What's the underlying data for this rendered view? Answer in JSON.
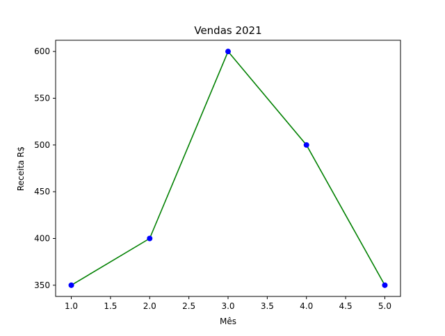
{
  "chart_data": {
    "type": "line",
    "title": "Vendas 2021",
    "xlabel": "Mês",
    "ylabel": "Receita R$",
    "x": [
      1,
      2,
      3,
      4,
      5
    ],
    "series": [
      {
        "values": [
          350,
          400,
          600,
          500,
          350
        ],
        "line_color": "#008000",
        "marker_color": "#0000ff",
        "marker": "circle"
      }
    ],
    "xlim": [
      0.8,
      5.2
    ],
    "ylim": [
      338,
      612
    ],
    "xticks": [
      1.0,
      1.5,
      2.0,
      2.5,
      3.0,
      3.5,
      4.0,
      4.5,
      5.0
    ],
    "xtick_labels": [
      "1.0",
      "1.5",
      "2.0",
      "2.5",
      "3.0",
      "3.5",
      "4.0",
      "4.5",
      "5.0"
    ],
    "yticks": [
      350,
      400,
      450,
      500,
      550,
      600
    ],
    "ytick_labels": [
      "350",
      "400",
      "450",
      "500",
      "550",
      "600"
    ],
    "grid": false,
    "legend": false
  }
}
